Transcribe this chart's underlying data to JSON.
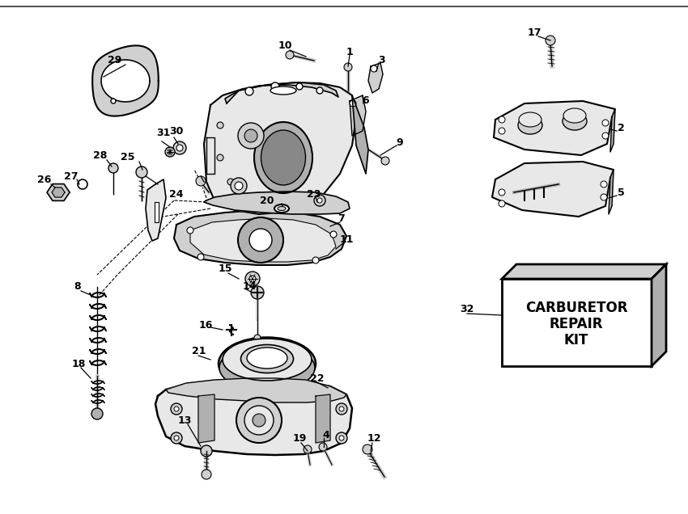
{
  "bg_color": "#ffffff",
  "line_color": "#000000",
  "fill_light": "#e8e8e8",
  "fill_dark": "#b0b0b0",
  "fill_mid": "#d0d0d0",
  "box_text": [
    "CARBURETOR",
    "REPAIR",
    "KIT"
  ],
  "border_color": "#888888"
}
